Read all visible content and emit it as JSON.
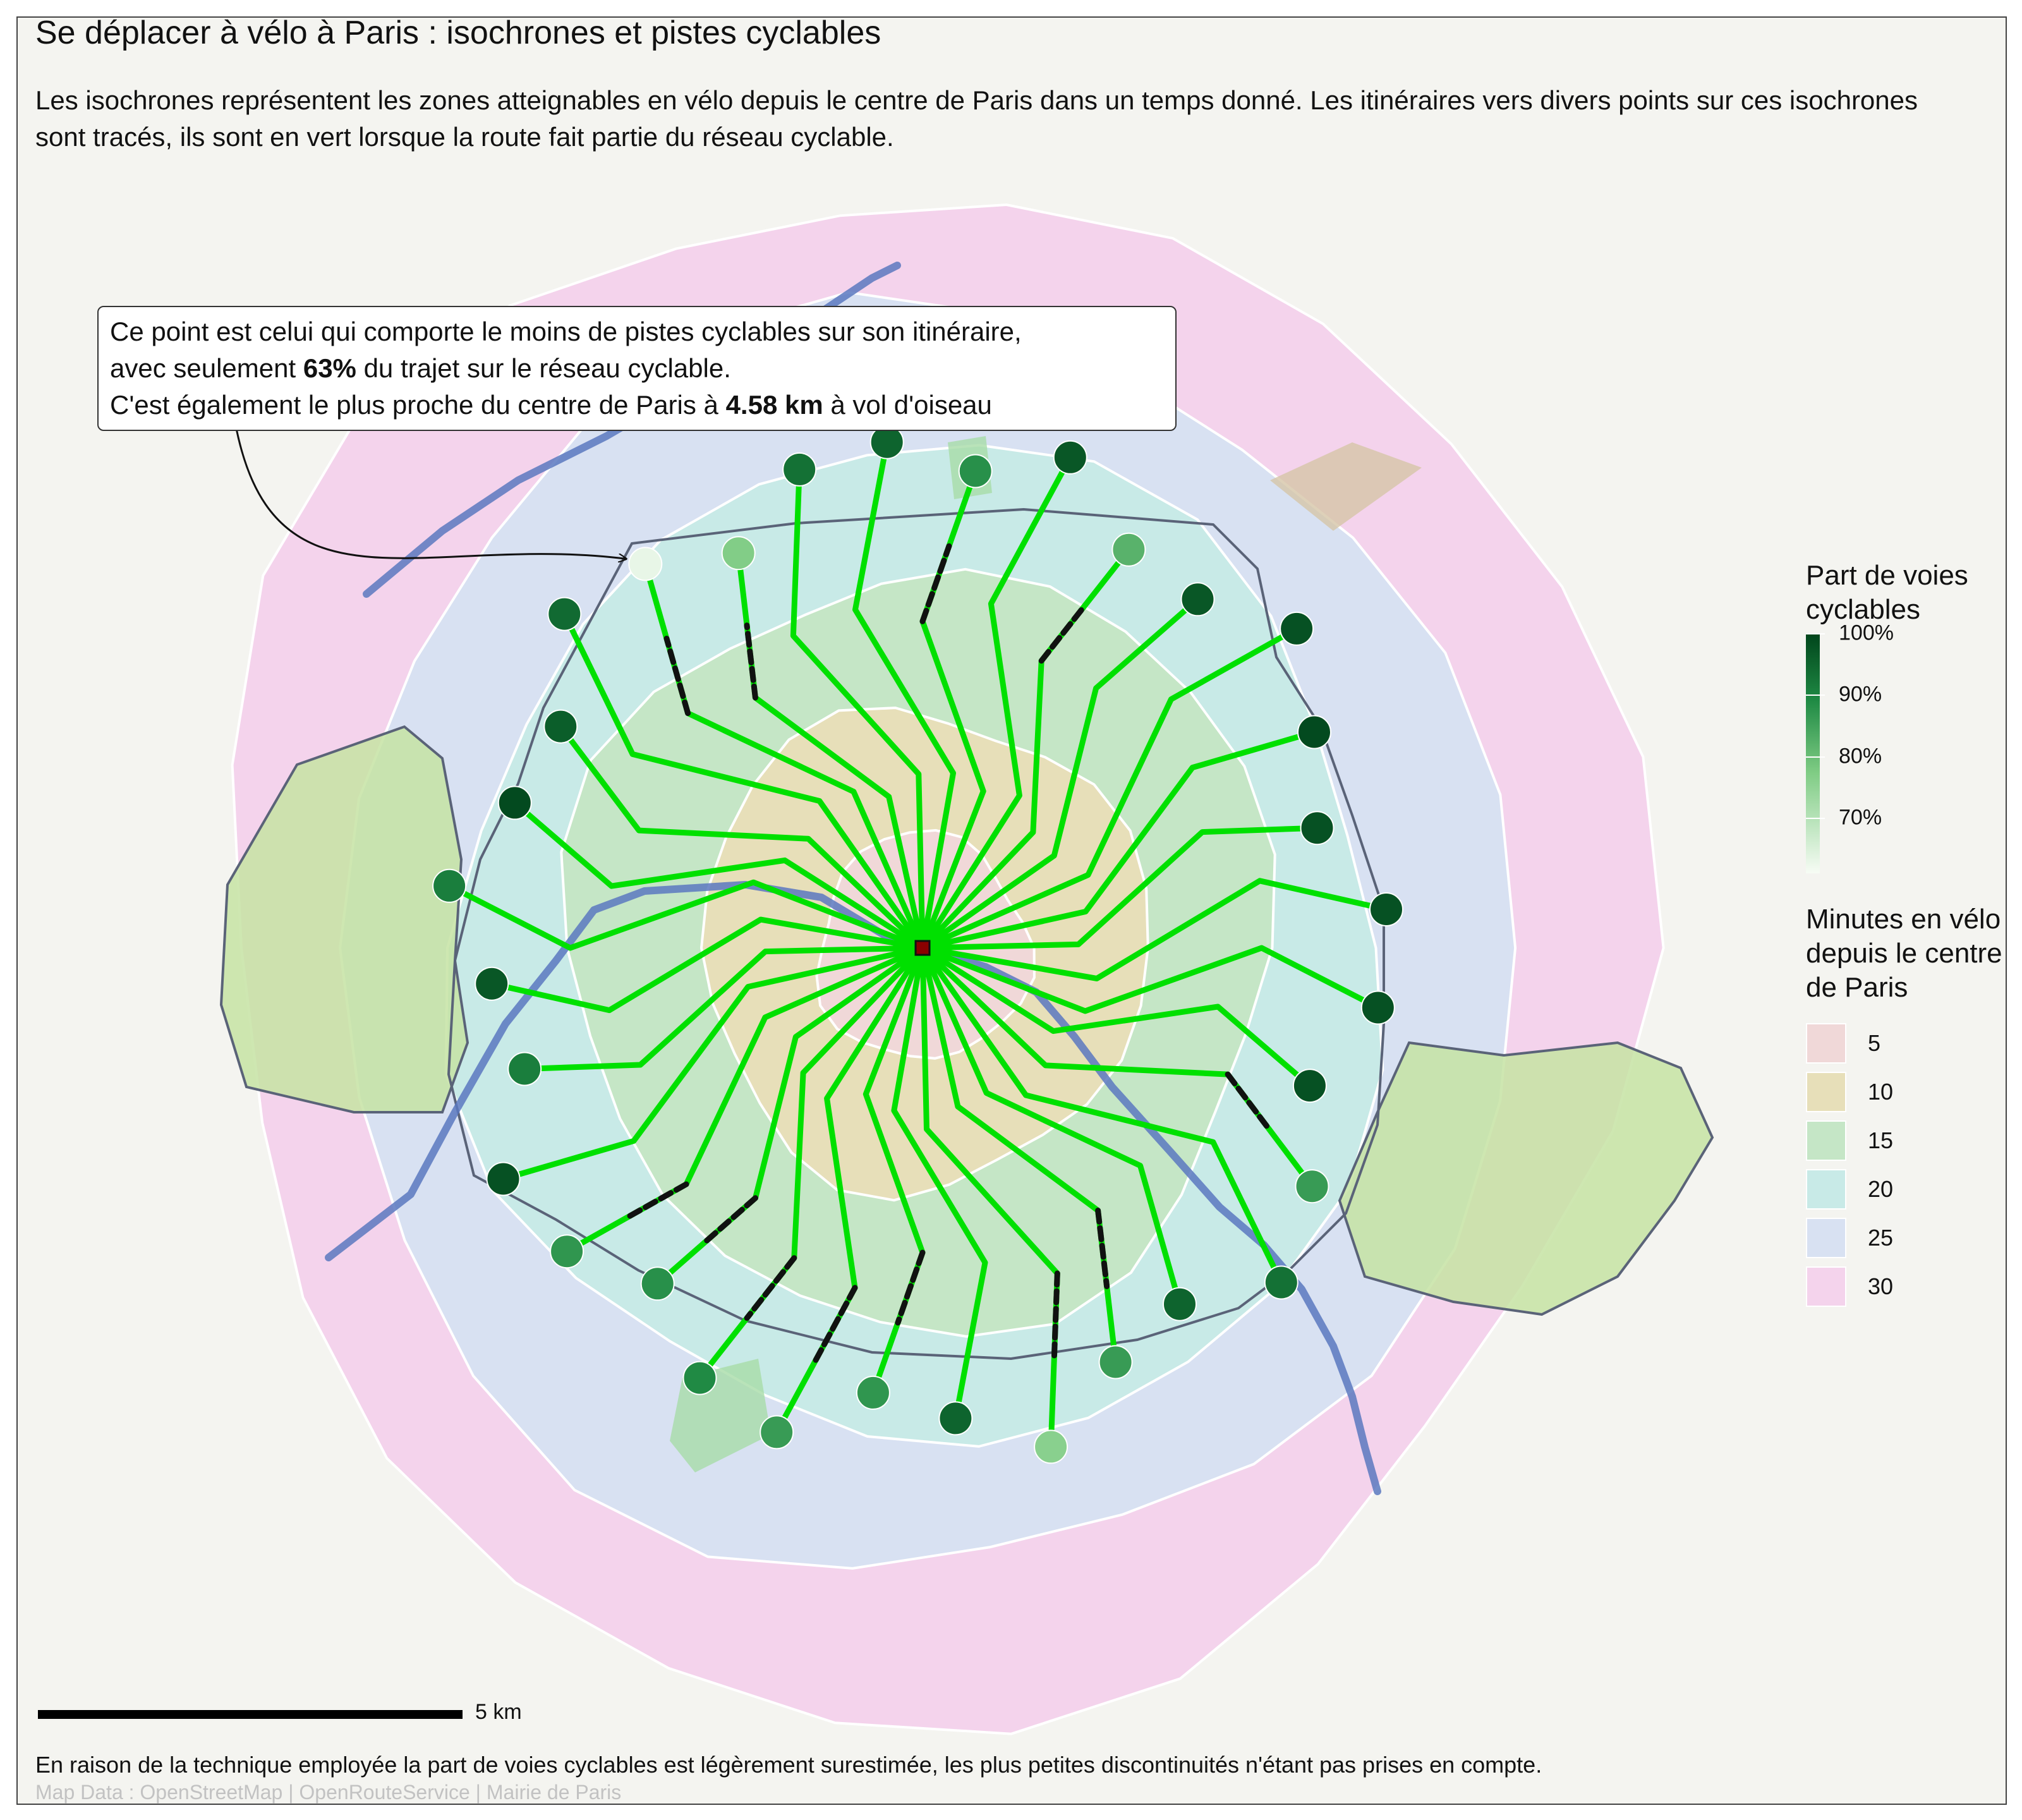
{
  "title": "Se déplacer à vélo à Paris : isochrones et pistes cyclables",
  "subtitle": "Les isochrones représentent les zones atteignables en vélo depuis le centre de Paris dans un temps donné. Les itinéraires vers divers points sur ces isochrones sont tracés, ils sont en vert lorsque la route fait partie du réseau cyclable.",
  "annotation": {
    "line1": "Ce point est celui qui comporte le moins de pistes cyclables sur son itinéraire,",
    "line2_pre": "avec seulement ",
    "line2_bold": "63%",
    "line2_post": " du trajet sur le réseau cyclable.",
    "line3_pre": "C'est également le plus proche du centre de Paris à ",
    "line3_bold": "4.58 km",
    "line3_post": " à vol d'oiseau"
  },
  "legend": {
    "gradient_title": "Part de voies cyclables",
    "gradient": [
      {
        "label": "100%",
        "value": 100
      },
      {
        "label": "90%",
        "value": 90
      },
      {
        "label": "80%",
        "value": 80
      },
      {
        "label": "70%",
        "value": 70
      }
    ],
    "gradient_range": [
      61,
      100
    ],
    "gradient_colors": [
      "#00441b",
      "#1f8a44",
      "#7fcc84",
      "#f7fcf5"
    ],
    "category_title": "Minutes en vélo depuis le centre de Paris",
    "categories": [
      {
        "label": "5",
        "color": "#f0d8d8"
      },
      {
        "label": "10",
        "color": "#e7dfb9"
      },
      {
        "label": "15",
        "color": "#c5e6c6"
      },
      {
        "label": "20",
        "color": "#c8eae7"
      },
      {
        "label": "25",
        "color": "#d8e1f2"
      },
      {
        "label": "30",
        "color": "#f4d3ec"
      }
    ]
  },
  "scale": {
    "label": "5 km"
  },
  "footnote": "En raison de la technique employée la part de voies cyclables est légèrement surestimée, les plus petites discontinuités n'étant pas prises en compte.",
  "credits": "Map Data : OpenStreetMap | OpenRouteService | Mairie de Paris",
  "map": {
    "route_color": "#00e000",
    "non_cycle_color": "#111111",
    "river_color": "#5a78c0",
    "center_color": "#8b0000",
    "endpoints": [
      {
        "share": 88
      },
      {
        "share": 97
      },
      {
        "share": 82
      },
      {
        "share": 97
      },
      {
        "share": 98
      },
      {
        "share": 99
      },
      {
        "share": 98
      },
      {
        "share": 98
      },
      {
        "share": 98
      },
      {
        "share": 98
      },
      {
        "share": 86
      },
      {
        "share": 93
      },
      {
        "share": 95
      },
      {
        "share": 86
      },
      {
        "share": 76
      },
      {
        "share": 95
      },
      {
        "share": 87
      },
      {
        "share": 86
      },
      {
        "share": 89
      },
      {
        "share": 88
      },
      {
        "share": 87
      },
      {
        "share": 98
      },
      {
        "share": 91
      },
      {
        "share": 97
      },
      {
        "share": 91
      },
      {
        "share": 99
      },
      {
        "share": 96
      },
      {
        "share": 94
      },
      {
        "share": 63
      },
      {
        "share": 77
      },
      {
        "share": 93
      },
      {
        "share": 95
      }
    ]
  }
}
